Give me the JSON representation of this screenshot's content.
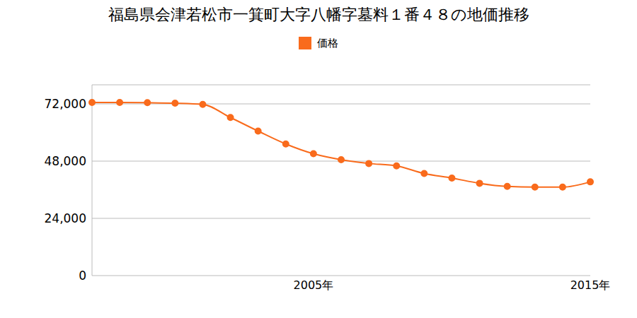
{
  "chart_data": {
    "type": "line",
    "title": "福島県会津若松市一箕町大字八幡字墓料１番４８の地価推移",
    "categories": [
      null,
      null,
      null,
      null,
      null,
      null,
      null,
      null,
      "2005年",
      null,
      null,
      null,
      null,
      null,
      null,
      null,
      null,
      null,
      "2015年"
    ],
    "series": [
      {
        "name": "価格",
        "color": "#f96b1c",
        "marker": "circle",
        "values": [
          72600,
          72600,
          72500,
          72300,
          71800,
          66300,
          60600,
          55200,
          51100,
          48600,
          47000,
          46000,
          42800,
          40900,
          38700,
          37400,
          37100,
          37100,
          39300
        ]
      }
    ],
    "ylim": [
      0,
      80000
    ],
    "yticks": [
      0,
      {
        "value": 24000,
        "label": "24,000"
      },
      {
        "value": 48000,
        "label": "48,000"
      },
      {
        "value": 72000,
        "label": "72,000"
      }
    ],
    "grid": true,
    "legend": "top"
  }
}
